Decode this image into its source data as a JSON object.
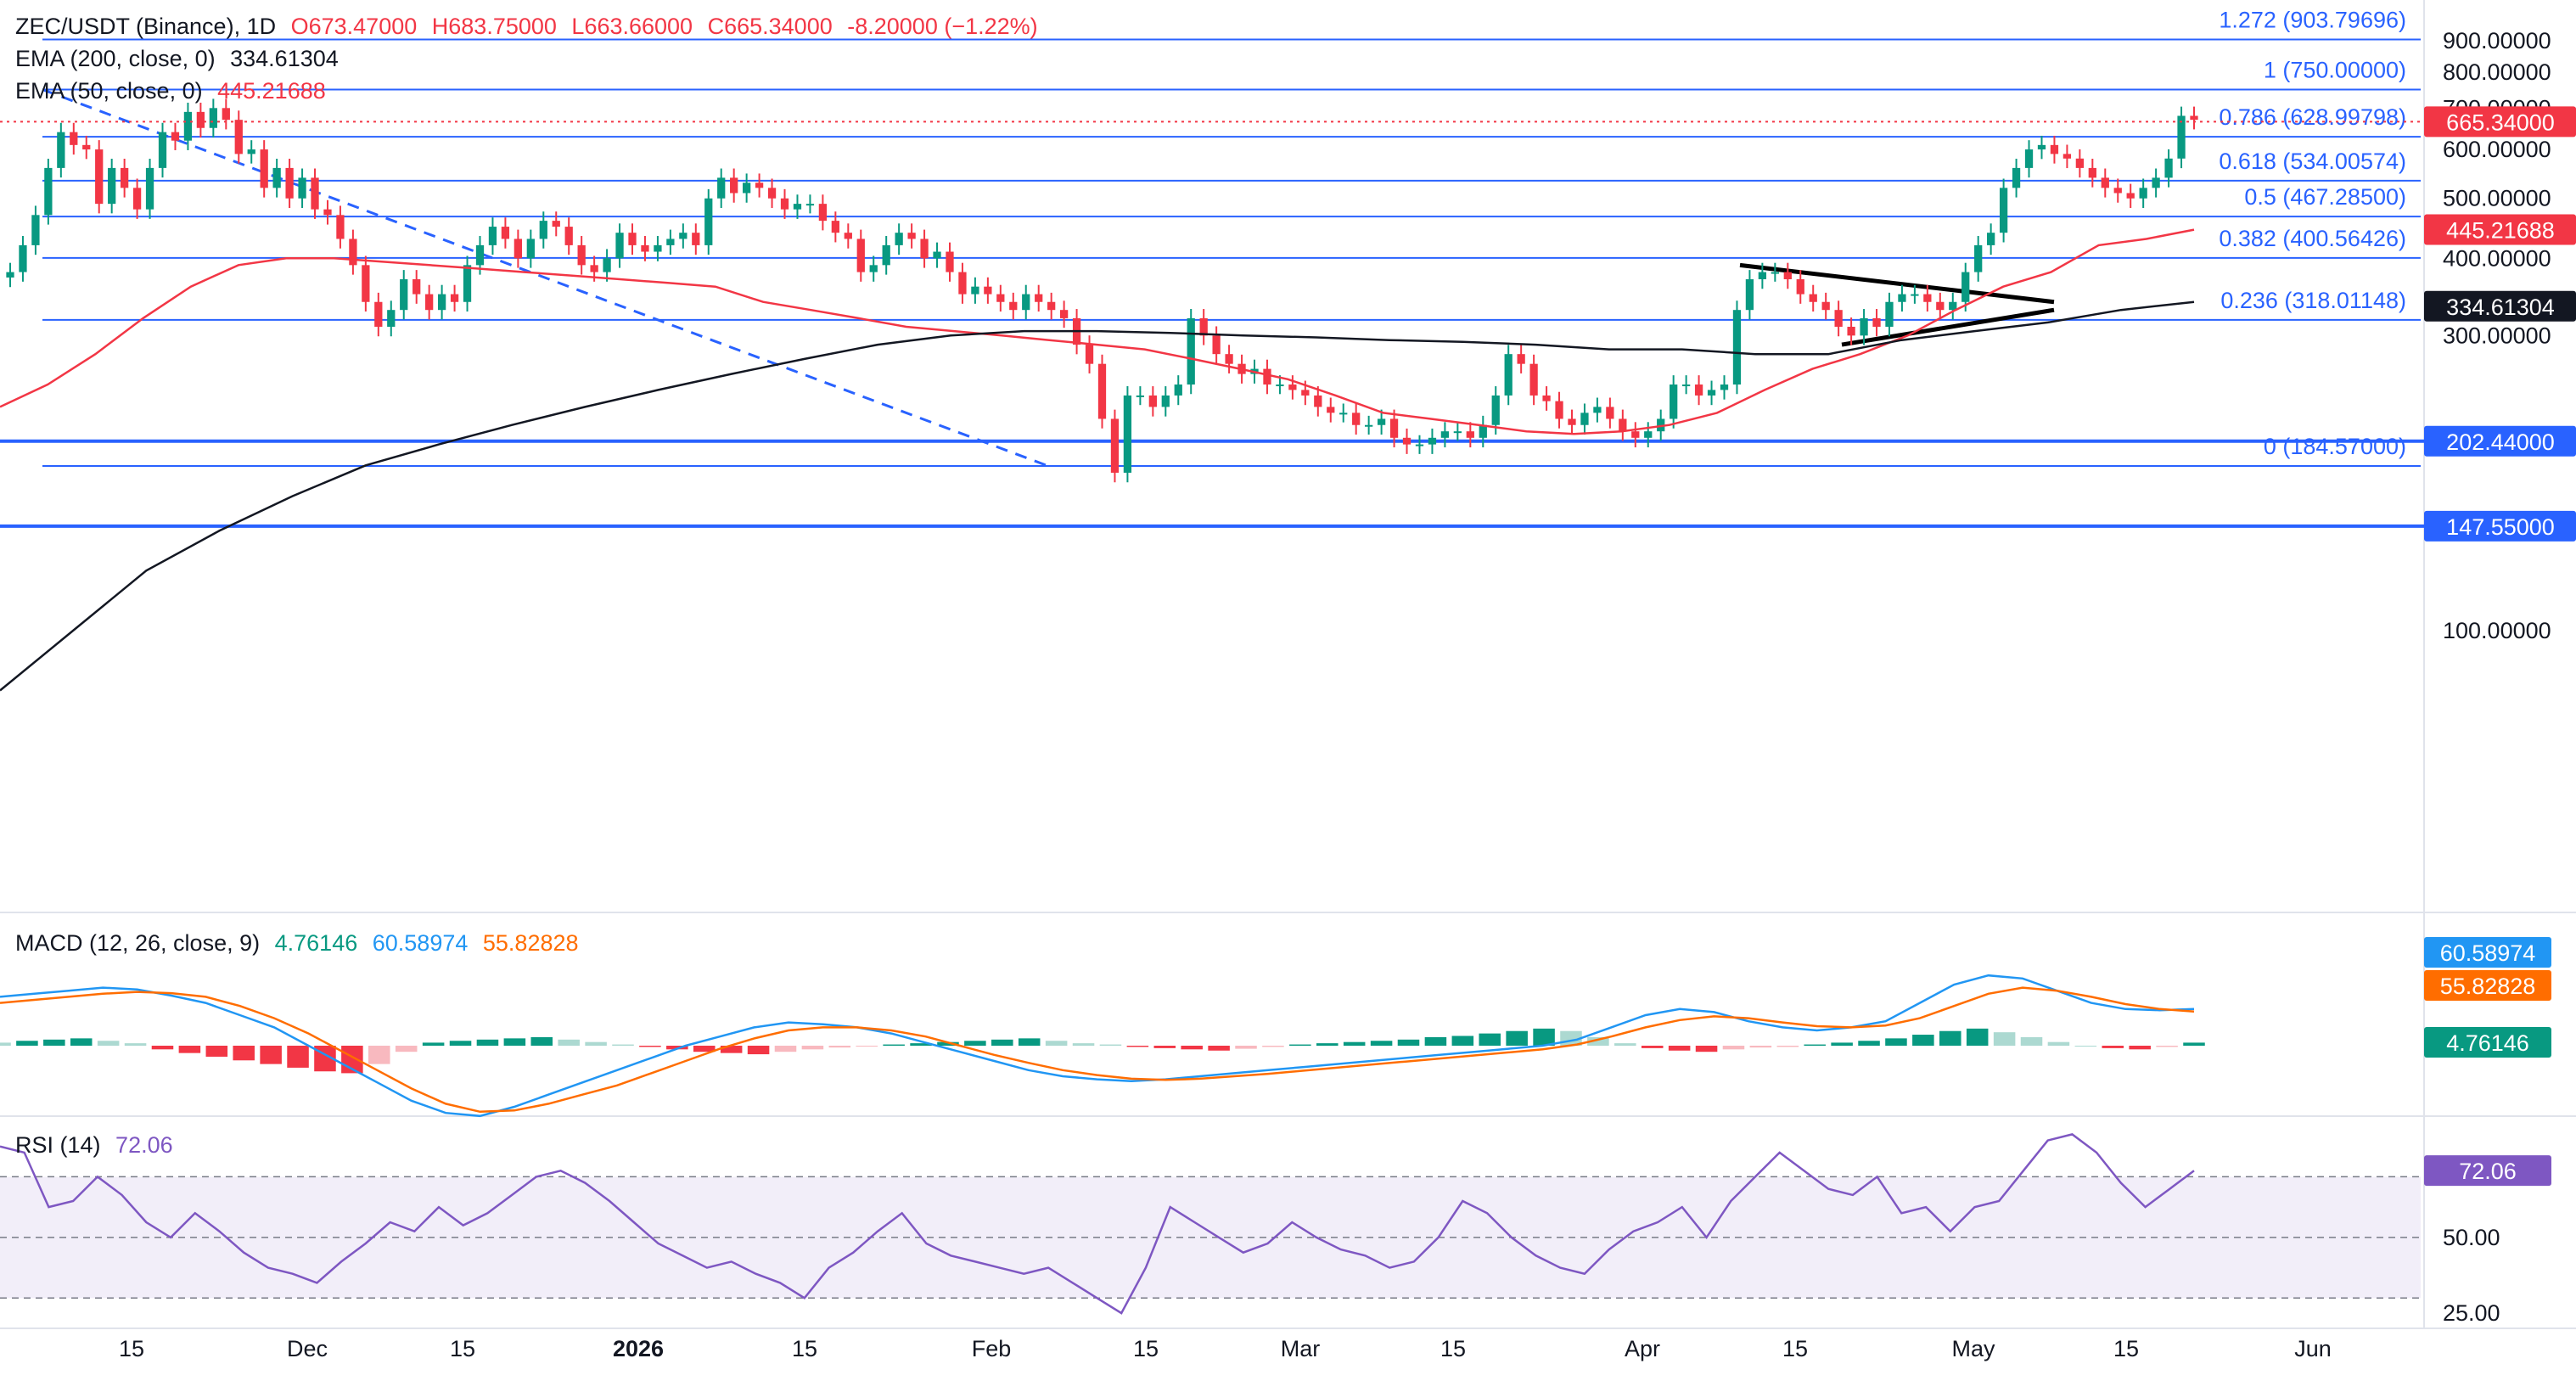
{
  "header": {
    "symbol": "ZEC/USDT (Binance), 1D",
    "open": "O673.47000",
    "high": "H683.75000",
    "low": "L663.66000",
    "close": "C665.34000",
    "change": "-8.20000 (−1.22%)",
    "ema200_label": "EMA (200, close, 0)",
    "ema200_value": "334.61304",
    "ema50_label": "EMA (50, close, 0)",
    "ema50_value": "445.21688"
  },
  "macd_header": {
    "label": "MACD (12, 26, close, 9)",
    "hist": "4.76146",
    "macd": "60.58974",
    "signal": "55.82828"
  },
  "rsi_header": {
    "label": "RSI (14)",
    "value": "72.06"
  },
  "colors": {
    "up": "#089981",
    "down": "#f23645",
    "ema50": "#f23645",
    "ema200": "#131722",
    "fib": "#2962ff",
    "macd": "#2196f3",
    "signal": "#ff6d00",
    "rsi": "#7e57c2"
  },
  "chart_data": [
    {
      "type": "candlestick",
      "title": "ZEC/USDT (Binance), 1D",
      "x_ticks": [
        "15",
        "Dec",
        "15",
        "2026",
        "15",
        "Feb",
        "15",
        "Mar",
        "15",
        "Apr",
        "15",
        "May",
        "15",
        "Jun"
      ],
      "y_ticks": [
        "100.00000",
        "200.00000",
        "300.00000",
        "400.00000",
        "500.00000",
        "600.00000",
        "700.00000",
        "800.00000",
        "900.00000"
      ],
      "ylim": [
        35,
        908
      ],
      "scale": "log",
      "close_series": [
        380,
        420,
        470,
        560,
        640,
        610,
        600,
        490,
        560,
        520,
        480,
        560,
        640,
        620,
        690,
        650,
        700,
        670,
        590,
        600,
        520,
        560,
        500,
        540,
        480,
        470,
        430,
        390,
        340,
        310,
        330,
        370,
        350,
        330,
        350,
        340,
        390,
        420,
        450,
        430,
        400,
        430,
        460,
        450,
        420,
        390,
        380,
        400,
        440,
        420,
        410,
        420,
        430,
        440,
        420,
        500,
        540,
        510,
        530,
        520,
        500,
        480,
        490,
        490,
        460,
        440,
        430,
        380,
        390,
        420,
        440,
        430,
        400,
        410,
        380,
        350,
        360,
        350,
        340,
        330,
        350,
        340,
        330,
        320,
        290,
        270,
        220,
        180,
        240,
        240,
        230,
        240,
        250,
        320,
        300,
        280,
        270,
        260,
        265,
        250,
        250,
        245,
        240,
        230,
        225,
        225,
        215,
        215,
        220,
        205,
        200,
        200,
        205,
        210,
        210,
        205,
        215,
        240,
        280,
        270,
        240,
        235,
        220,
        215,
        225,
        230,
        220,
        210,
        205,
        210,
        220,
        250,
        250,
        240,
        245,
        250,
        330,
        370,
        380,
        380,
        370,
        350,
        340,
        330,
        310,
        300,
        320,
        310,
        340,
        350,
        350,
        340,
        330,
        340,
        380,
        420,
        440,
        520,
        560,
        600,
        610,
        590,
        580,
        560,
        540,
        520,
        510,
        500,
        520,
        540,
        580,
        680,
        670
      ],
      "ema50": [
        230,
        250,
        280,
        320,
        360,
        390,
        400,
        400,
        395,
        390,
        385,
        380,
        375,
        370,
        365,
        360,
        340,
        330,
        320,
        310,
        305,
        300,
        295,
        290,
        285,
        275,
        265,
        255,
        240,
        225,
        220,
        215,
        210,
        208,
        210,
        215,
        225,
        245,
        265,
        280,
        300,
        330,
        360,
        380,
        420,
        430,
        445
      ],
      "ema200": [
        80,
        100,
        125,
        145,
        165,
        185,
        200,
        215,
        230,
        245,
        260,
        275,
        290,
        300,
        305,
        305,
        303,
        300,
        298,
        295,
        293,
        290,
        285,
        285,
        280,
        280,
        295,
        305,
        315,
        330,
        340
      ],
      "fib_levels": [
        {
          "label": "1.272 (903.79696)",
          "value": 903.79696
        },
        {
          "label": "1 (750.00000)",
          "value": 750.0
        },
        {
          "label": "0.786 (628.99798)",
          "value": 628.99798
        },
        {
          "label": "0.618 (534.00574)",
          "value": 534.00574
        },
        {
          "label": "0.5 (467.28500)",
          "value": 467.285
        },
        {
          "label": "0.382 (400.56426)",
          "value": 400.56426
        },
        {
          "label": "0.236 (318.01148)",
          "value": 318.01148
        },
        {
          "label": "0 (184.57000)",
          "value": 184.57
        }
      ],
      "horizontal_lines": [
        202.44,
        147.55
      ],
      "price_labels": [
        {
          "text": "665.34000",
          "value": 665.34,
          "color": "#f23645"
        },
        {
          "text": "445.21688",
          "value": 445.21688,
          "color": "#f23645"
        },
        {
          "text": "334.61304",
          "value": 334.61304,
          "color": "#131722"
        },
        {
          "text": "202.44000",
          "value": 202.44,
          "color": "#2962ff"
        },
        {
          "text": "147.55000",
          "value": 147.55,
          "color": "#2962ff"
        }
      ],
      "trendlines": [
        {
          "style": "dashed",
          "color": "#2962ff",
          "from": 750,
          "to": 184.57
        },
        {
          "style": "solid",
          "color": "#000000",
          "from": 390,
          "to": 340
        },
        {
          "style": "solid",
          "color": "#000000",
          "from": 290,
          "to": 330
        }
      ]
    },
    {
      "type": "line+bar",
      "title": "MACD (12, 26, close, 9)",
      "histogram": [
        5,
        8,
        10,
        12,
        8,
        4,
        -6,
        -12,
        -18,
        -24,
        -30,
        -36,
        -42,
        -45,
        -30,
        -10,
        5,
        8,
        10,
        12,
        14,
        10,
        6,
        2,
        -2,
        -6,
        -10,
        -12,
        -14,
        -10,
        -6,
        -3,
        -1,
        2,
        4,
        6,
        8,
        10,
        12,
        8,
        4,
        2,
        -2,
        -4,
        -6,
        -8,
        -5,
        -2,
        2,
        4,
        6,
        8,
        10,
        14,
        16,
        20,
        24,
        28,
        24,
        14,
        4,
        -4,
        -8,
        -10,
        -6,
        -3,
        -2,
        2,
        5,
        8,
        12,
        18,
        24,
        28,
        22,
        14,
        6,
        0,
        -4,
        -6,
        -2,
        5
      ],
      "macd_line": [
        80,
        85,
        90,
        95,
        92,
        82,
        70,
        50,
        30,
        0,
        -30,
        -60,
        -90,
        -110,
        -115,
        -100,
        -80,
        -60,
        -40,
        -20,
        0,
        15,
        30,
        38,
        35,
        30,
        20,
        5,
        -10,
        -25,
        -40,
        -50,
        -55,
        -58,
        -55,
        -50,
        -45,
        -40,
        -35,
        -30,
        -25,
        -20,
        -15,
        -10,
        -5,
        0,
        10,
        30,
        50,
        60,
        55,
        40,
        30,
        25,
        30,
        40,
        70,
        100,
        115,
        110,
        90,
        70,
        60,
        58,
        60
      ],
      "signal_line": [
        70,
        75,
        80,
        85,
        88,
        86,
        80,
        65,
        45,
        20,
        -10,
        -40,
        -70,
        -95,
        -108,
        -106,
        -95,
        -80,
        -65,
        -45,
        -25,
        -5,
        12,
        25,
        30,
        30,
        25,
        15,
        0,
        -15,
        -28,
        -40,
        -48,
        -54,
        -56,
        -54,
        -50,
        -46,
        -41,
        -36,
        -31,
        -26,
        -21,
        -16,
        -11,
        -6,
        2,
        15,
        30,
        42,
        48,
        45,
        38,
        32,
        30,
        33,
        45,
        65,
        85,
        95,
        90,
        80,
        68,
        60,
        56
      ],
      "values_shown": {
        "hist": 4.76146,
        "macd": 60.58974,
        "signal": 55.82828
      }
    },
    {
      "type": "line",
      "title": "RSI (14)",
      "y_ticks": [
        "25.00",
        "50.00"
      ],
      "levels": [
        70,
        50,
        30
      ],
      "ylim": [
        20,
        90
      ],
      "series": [
        {
          "values": [
            80,
            78,
            60,
            62,
            70,
            64,
            55,
            50,
            58,
            52,
            45,
            40,
            38,
            35,
            42,
            48,
            55,
            52,
            60,
            54,
            58,
            64,
            70,
            72,
            68,
            62,
            55,
            48,
            44,
            40,
            42,
            38,
            35,
            30,
            40,
            45,
            52,
            58,
            48,
            44,
            42,
            40,
            38,
            40,
            35,
            30,
            25,
            40,
            60,
            55,
            50,
            45,
            48,
            55,
            50,
            46,
            44,
            40,
            42,
            50,
            62,
            58,
            50,
            44,
            40,
            38,
            46,
            52,
            55,
            60,
            50,
            62,
            70,
            78,
            72,
            66,
            64,
            70,
            58,
            60,
            52,
            60,
            62,
            72,
            82,
            84,
            78,
            68,
            60,
            66,
            72
          ]
        }
      ],
      "value_shown": 72.06
    }
  ]
}
